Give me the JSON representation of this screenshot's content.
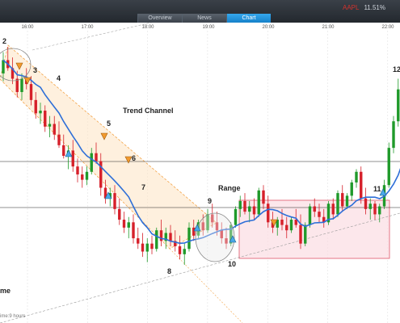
{
  "tabs": [
    {
      "label": "Overview",
      "active": false
    },
    {
      "label": "News",
      "active": false
    },
    {
      "label": "Chart",
      "active": true
    }
  ],
  "ticker": {
    "name": "AAPL",
    "change": "11.51%"
  },
  "colors": {
    "up": "#1f9a2a",
    "down": "#d6202a",
    "ma": "#2e6fd8",
    "channel": "#f6b76a",
    "range": "#ee7a8a",
    "grid": "#dcdcdc"
  },
  "chart_data": {
    "type": "candlestick",
    "x_tick_labels": [
      "16:00",
      "17:00",
      "18:00",
      "19:00",
      "20:00",
      "21:00",
      "22:00"
    ],
    "timeframe_label": "ime:9 hours",
    "annotations": [
      "Trend Channel",
      "Range",
      "me"
    ],
    "swing_labels": [
      "2",
      "3",
      "4",
      "5",
      "6",
      "7",
      "8",
      "9",
      "10",
      "11",
      "12"
    ],
    "buy_signals": 5,
    "sell_signals": 5,
    "candles": [
      {
        "o": 52,
        "h": 60,
        "l": 49,
        "c": 57
      },
      {
        "o": 57,
        "h": 62,
        "l": 53,
        "c": 54
      },
      {
        "o": 54,
        "h": 58,
        "l": 48,
        "c": 50
      },
      {
        "o": 50,
        "h": 53,
        "l": 43,
        "c": 45
      },
      {
        "o": 45,
        "h": 52,
        "l": 42,
        "c": 50
      },
      {
        "o": 50,
        "h": 54,
        "l": 46,
        "c": 48
      },
      {
        "o": 48,
        "h": 51,
        "l": 40,
        "c": 42
      },
      {
        "o": 42,
        "h": 45,
        "l": 35,
        "c": 37
      },
      {
        "o": 37,
        "h": 41,
        "l": 33,
        "c": 38
      },
      {
        "o": 38,
        "h": 40,
        "l": 30,
        "c": 32
      },
      {
        "o": 32,
        "h": 36,
        "l": 28,
        "c": 33
      },
      {
        "o": 33,
        "h": 36,
        "l": 27,
        "c": 29
      },
      {
        "o": 29,
        "h": 34,
        "l": 24,
        "c": 25
      },
      {
        "o": 25,
        "h": 29,
        "l": 20,
        "c": 21
      },
      {
        "o": 21,
        "h": 25,
        "l": 16,
        "c": 23
      },
      {
        "o": 23,
        "h": 27,
        "l": 15,
        "c": 17
      },
      {
        "o": 17,
        "h": 20,
        "l": 11,
        "c": 14
      },
      {
        "o": 14,
        "h": 17,
        "l": 9,
        "c": 12
      },
      {
        "o": 12,
        "h": 17,
        "l": 10,
        "c": 15
      },
      {
        "o": 15,
        "h": 24,
        "l": 14,
        "c": 22
      },
      {
        "o": 22,
        "h": 26,
        "l": 18,
        "c": 19
      },
      {
        "o": 19,
        "h": 22,
        "l": 6,
        "c": 9
      },
      {
        "o": 9,
        "h": 12,
        "l": 3,
        "c": 5
      },
      {
        "o": 5,
        "h": 9,
        "l": 2,
        "c": 7
      },
      {
        "o": 7,
        "h": 10,
        "l": -1,
        "c": 1
      },
      {
        "o": 1,
        "h": 5,
        "l": -5,
        "c": -3
      },
      {
        "o": -3,
        "h": 0,
        "l": -8,
        "c": -6
      },
      {
        "o": -6,
        "h": -2,
        "l": -10,
        "c": -4
      },
      {
        "o": -4,
        "h": -1,
        "l": -12,
        "c": -10
      },
      {
        "o": -10,
        "h": -6,
        "l": -14,
        "c": -12
      },
      {
        "o": -12,
        "h": -8,
        "l": -17,
        "c": -15
      },
      {
        "o": -15,
        "h": -10,
        "l": -19,
        "c": -12
      },
      {
        "o": -12,
        "h": -9,
        "l": -16,
        "c": -14
      },
      {
        "o": -14,
        "h": -6,
        "l": -15,
        "c": -7
      },
      {
        "o": -7,
        "h": -3,
        "l": -13,
        "c": -11
      },
      {
        "o": -11,
        "h": -6,
        "l": -14,
        "c": -8
      },
      {
        "o": -8,
        "h": -5,
        "l": -13,
        "c": -11
      },
      {
        "o": -11,
        "h": -7,
        "l": -15,
        "c": -13
      },
      {
        "o": -13,
        "h": -9,
        "l": -18,
        "c": -16
      },
      {
        "o": -16,
        "h": -12,
        "l": -20,
        "c": -14
      },
      {
        "o": -14,
        "h": -4,
        "l": -15,
        "c": -6
      },
      {
        "o": -6,
        "h": -3,
        "l": -11,
        "c": -9
      },
      {
        "o": -9,
        "h": -3,
        "l": -10,
        "c": -4
      },
      {
        "o": -4,
        "h": -1,
        "l": -9,
        "c": -7
      },
      {
        "o": -7,
        "h": 1,
        "l": -8,
        "c": -1
      },
      {
        "o": -1,
        "h": 3,
        "l": -6,
        "c": -4
      },
      {
        "o": -4,
        "h": 0,
        "l": -9,
        "c": -7
      },
      {
        "o": -7,
        "h": -4,
        "l": -12,
        "c": -10
      },
      {
        "o": -10,
        "h": -6,
        "l": -14,
        "c": -12
      },
      {
        "o": -12,
        "h": -4,
        "l": -13,
        "c": -5
      },
      {
        "o": -5,
        "h": 2,
        "l": -6,
        "c": 1
      },
      {
        "o": 1,
        "h": 6,
        "l": -2,
        "c": 4
      },
      {
        "o": 4,
        "h": 7,
        "l": -1,
        "c": 0
      },
      {
        "o": 0,
        "h": 4,
        "l": -4,
        "c": 2
      },
      {
        "o": 2,
        "h": 5,
        "l": -3,
        "c": -1
      },
      {
        "o": -1,
        "h": 9,
        "l": -2,
        "c": 8
      },
      {
        "o": 8,
        "h": 10,
        "l": 1,
        "c": 3
      },
      {
        "o": 3,
        "h": 6,
        "l": -6,
        "c": -4
      },
      {
        "o": -4,
        "h": 0,
        "l": -8,
        "c": -6
      },
      {
        "o": -6,
        "h": -2,
        "l": -9,
        "c": -3
      },
      {
        "o": -3,
        "h": 1,
        "l": -7,
        "c": -5
      },
      {
        "o": -5,
        "h": -2,
        "l": -10,
        "c": -7
      },
      {
        "o": -7,
        "h": -2,
        "l": -8,
        "c": -3
      },
      {
        "o": -3,
        "h": 1,
        "l": -6,
        "c": -5
      },
      {
        "o": -5,
        "h": -1,
        "l": -14,
        "c": -12
      },
      {
        "o": -12,
        "h": -4,
        "l": -13,
        "c": -5
      },
      {
        "o": -5,
        "h": 3,
        "l": -6,
        "c": 2
      },
      {
        "o": 2,
        "h": 5,
        "l": -2,
        "c": 0
      },
      {
        "o": 0,
        "h": 3,
        "l": -4,
        "c": -2
      },
      {
        "o": -2,
        "h": 1,
        "l": -6,
        "c": -4
      },
      {
        "o": -4,
        "h": 4,
        "l": -5,
        "c": 3
      },
      {
        "o": 3,
        "h": 5,
        "l": -3,
        "c": -1
      },
      {
        "o": -1,
        "h": 8,
        "l": -2,
        "c": 7
      },
      {
        "o": 7,
        "h": 10,
        "l": 0,
        "c": 2
      },
      {
        "o": 2,
        "h": 7,
        "l": 1,
        "c": 6
      },
      {
        "o": 6,
        "h": 12,
        "l": 4,
        "c": 11
      },
      {
        "o": 11,
        "h": 16,
        "l": 9,
        "c": 15
      },
      {
        "o": 15,
        "h": 17,
        "l": 3,
        "c": 5
      },
      {
        "o": 5,
        "h": 9,
        "l": -1,
        "c": 1
      },
      {
        "o": 1,
        "h": 5,
        "l": -3,
        "c": 3
      },
      {
        "o": 3,
        "h": 4,
        "l": -3,
        "c": -1
      },
      {
        "o": -1,
        "h": 3,
        "l": -4,
        "c": 2
      },
      {
        "o": 2,
        "h": 12,
        "l": 1,
        "c": 10
      },
      {
        "o": 10,
        "h": 26,
        "l": 9,
        "c": 24
      },
      {
        "o": 24,
        "h": 36,
        "l": 22,
        "c": 34
      },
      {
        "o": 34,
        "h": 50,
        "l": 32,
        "c": 46
      },
      {
        "o": 46,
        "h": 56,
        "l": 40,
        "c": 50
      },
      {
        "o": 50,
        "h": 58,
        "l": 46,
        "c": 55
      }
    ]
  }
}
